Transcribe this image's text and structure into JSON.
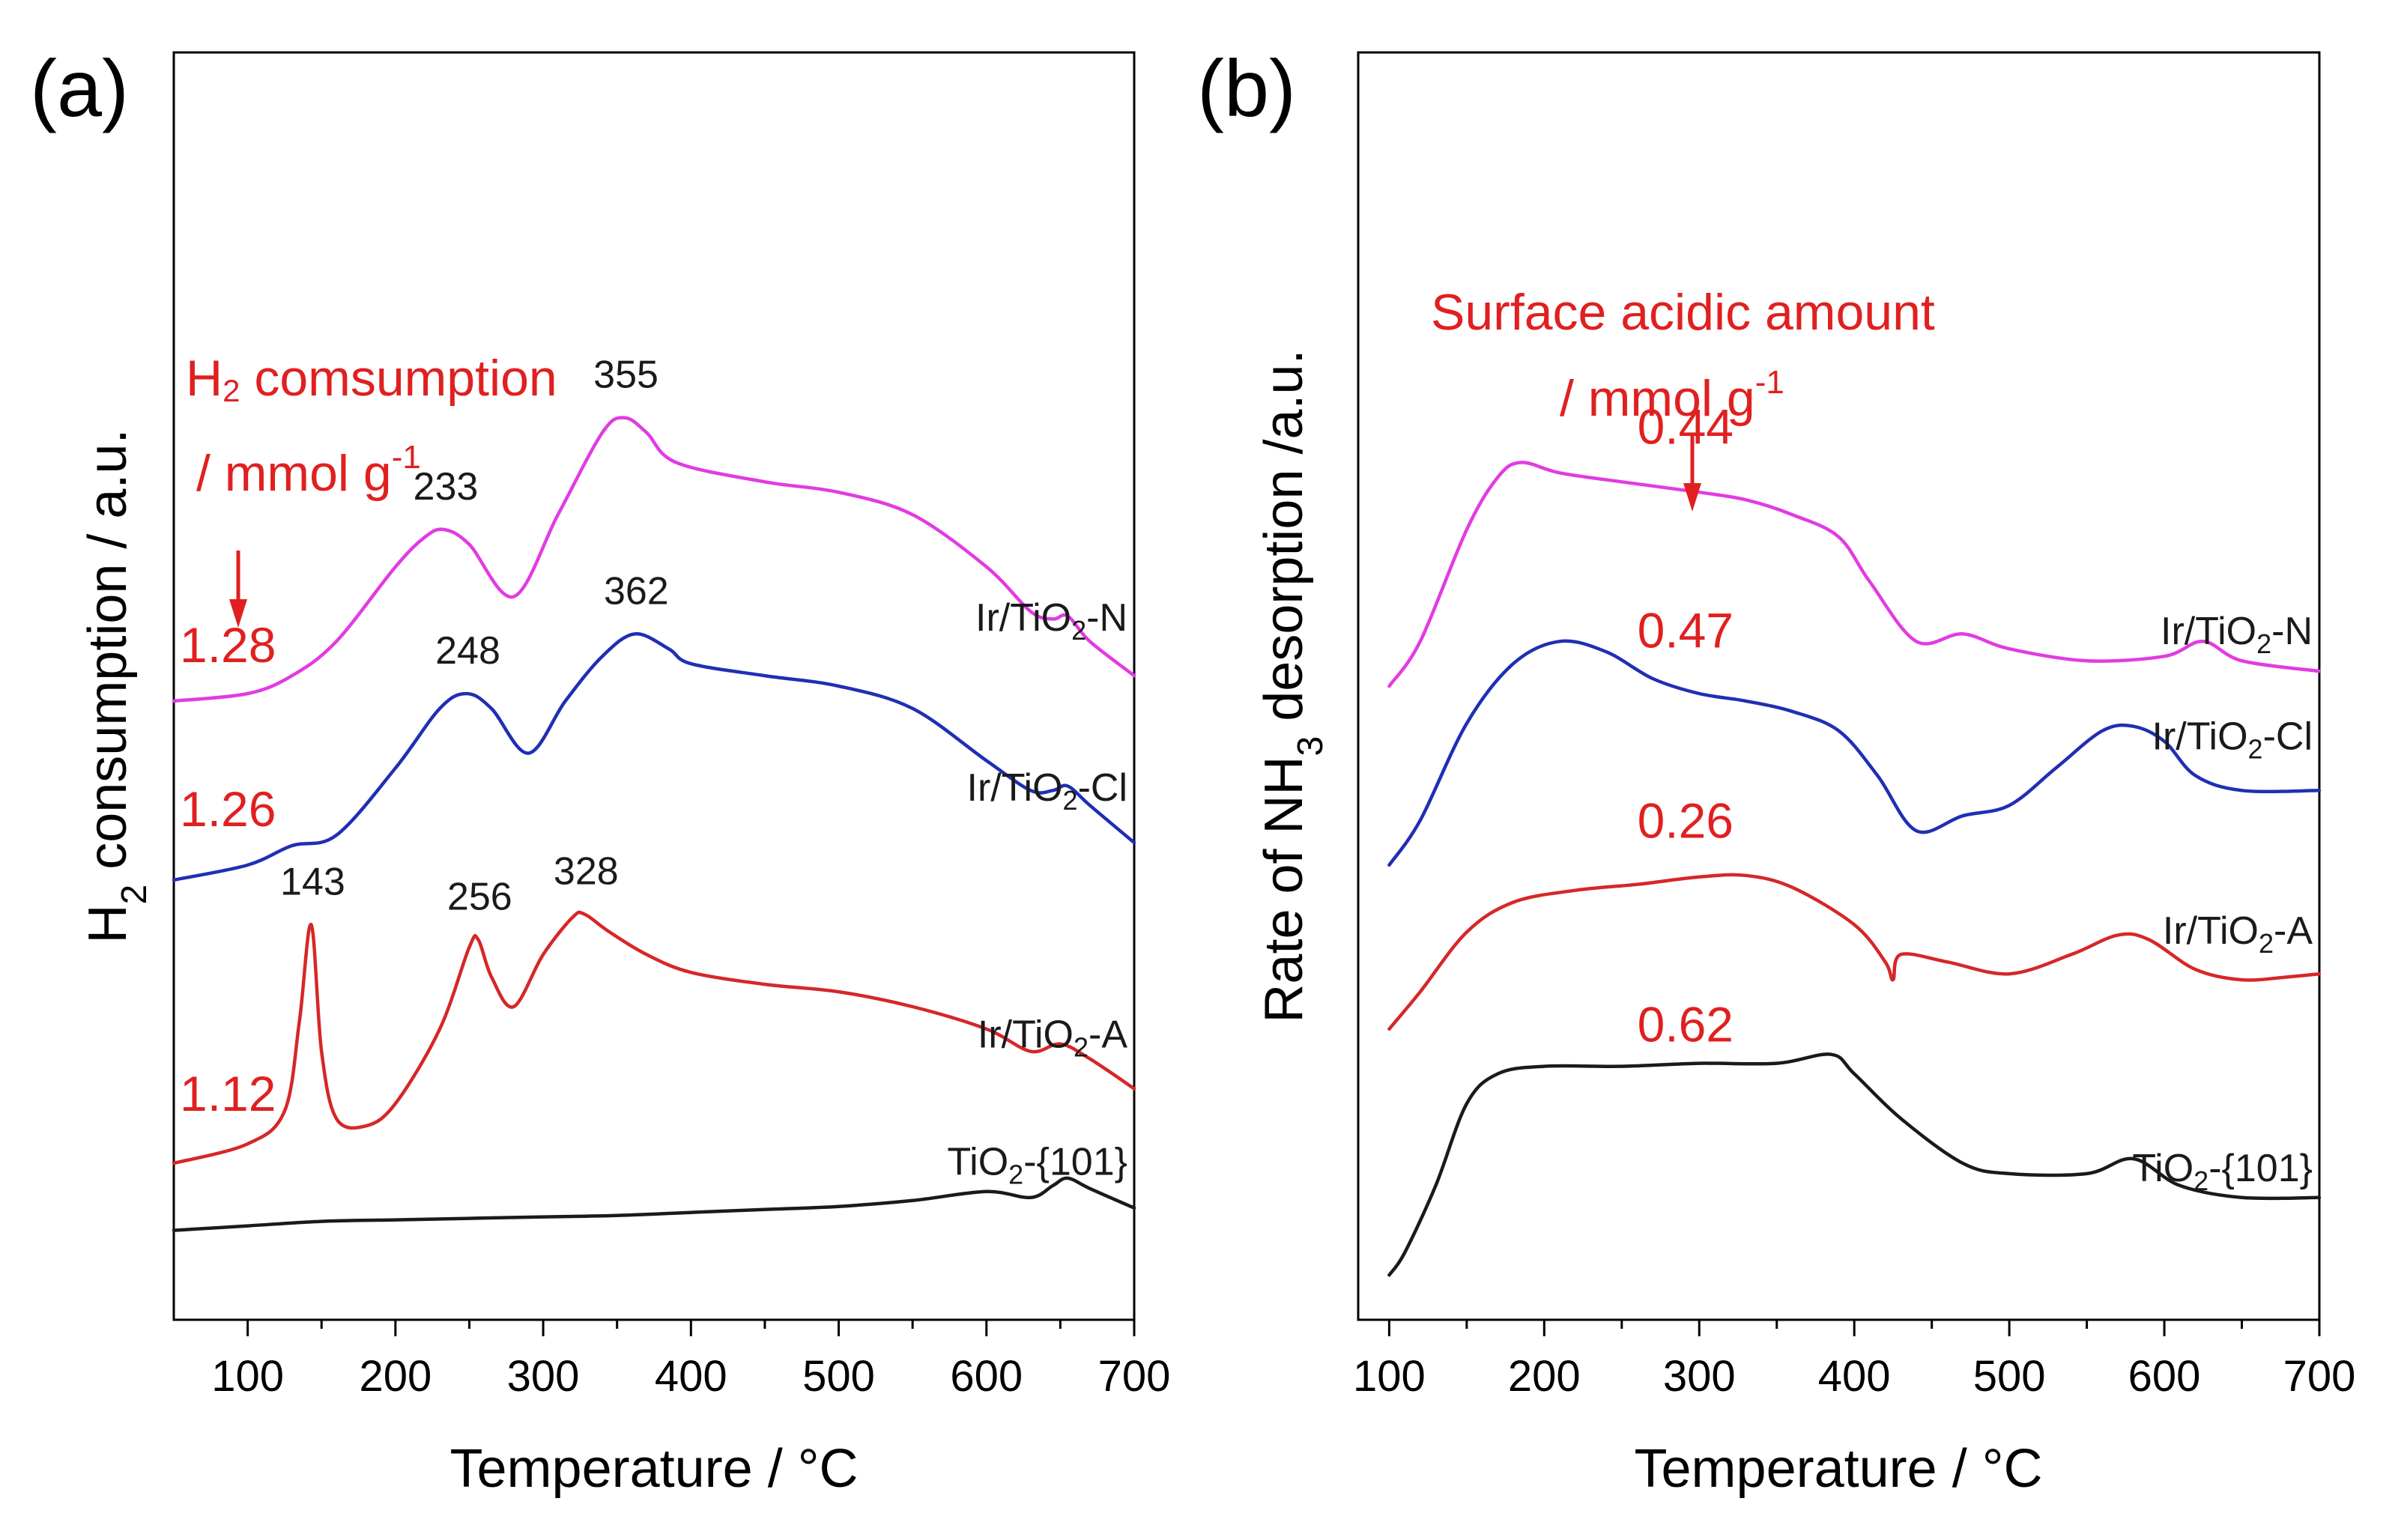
{
  "figure": {
    "colors": {
      "TiO2-{101}": "#1a1a1a",
      "Ir/TiO2-A": "#d62728",
      "Ir/TiO2-Cl": "#1f2fb4",
      "Ir/TiO2-N": "#e23be2",
      "annotation": "#e02020"
    }
  },
  "chart_data": [
    {
      "panel": "(a)",
      "type": "line",
      "xlabel": "Temperature / °C",
      "ylabel": "H2 consumption / a.u.",
      "xlim": [
        50,
        700
      ],
      "xticks": [
        100,
        200,
        300,
        400,
        500,
        600,
        700
      ],
      "ylim": [
        0,
        8.5
      ],
      "y_ticks_shown": false,
      "annotation": {
        "line1_sub": "H",
        "line1_subscript": "2",
        "line1_rest": " comsumption",
        "line2": "/ mmol g",
        "line2_sup": "-1"
      },
      "series": [
        {
          "name": "TiO2-{101}",
          "label_main": "TiO",
          "label_sub": "2",
          "label_rest": "-{101}",
          "value_label": "",
          "peak_labels": [],
          "x": [
            50,
            100,
            150,
            200,
            250,
            300,
            350,
            400,
            450,
            500,
            550,
            600,
            630,
            645,
            655,
            670,
            700
          ],
          "y": [
            0.6,
            0.63,
            0.66,
            0.67,
            0.68,
            0.69,
            0.7,
            0.72,
            0.74,
            0.76,
            0.8,
            0.86,
            0.82,
            0.9,
            0.95,
            0.88,
            0.75
          ]
        },
        {
          "name": "Ir/TiO2-A",
          "label_main": "Ir/TiO",
          "label_sub": "2",
          "label_rest": "-A",
          "value_label": "1.12",
          "peak_labels": [
            {
              "x": 143,
              "text": "143"
            },
            {
              "x": 256,
              "text": "256"
            },
            {
              "x": 328,
              "text": "328"
            }
          ],
          "x": [
            50,
            100,
            125,
            135,
            143,
            150,
            160,
            180,
            200,
            230,
            250,
            256,
            265,
            280,
            300,
            320,
            328,
            345,
            370,
            400,
            450,
            500,
            550,
            600,
            630,
            650,
            670,
            700
          ],
          "y": [
            1.05,
            1.18,
            1.4,
            2.0,
            2.65,
            1.8,
            1.35,
            1.3,
            1.45,
            1.95,
            2.5,
            2.55,
            2.3,
            2.1,
            2.45,
            2.7,
            2.72,
            2.6,
            2.45,
            2.33,
            2.25,
            2.2,
            2.1,
            1.95,
            1.8,
            1.85,
            1.75,
            1.55
          ]
        },
        {
          "name": "Ir/TiO2-Cl",
          "label_main": "Ir/TiO",
          "label_sub": "2",
          "label_rest": "-Cl",
          "value_label": "1.26",
          "peak_labels": [
            {
              "x": 248,
              "text": "248"
            },
            {
              "x": 362,
              "text": "362"
            }
          ],
          "x": [
            50,
            100,
            130,
            160,
            200,
            230,
            248,
            265,
            290,
            315,
            340,
            362,
            385,
            400,
            450,
            500,
            550,
            600,
            630,
            645,
            655,
            670,
            700
          ],
          "y": [
            2.95,
            3.05,
            3.18,
            3.25,
            3.7,
            4.1,
            4.2,
            4.1,
            3.8,
            4.15,
            4.45,
            4.6,
            4.5,
            4.4,
            4.32,
            4.25,
            4.1,
            3.75,
            3.55,
            3.55,
            3.58,
            3.45,
            3.2
          ]
        },
        {
          "name": "Ir/TiO2-N",
          "label_main": "Ir/TiO",
          "label_sub": "2",
          "label_rest": "-N",
          "value_label": "1.28",
          "peak_labels": [
            {
              "x": 233,
              "text": "233"
            },
            {
              "x": 355,
              "text": "355"
            }
          ],
          "x": [
            50,
            100,
            130,
            160,
            200,
            220,
            233,
            250,
            280,
            310,
            340,
            355,
            370,
            390,
            450,
            500,
            550,
            600,
            630,
            645,
            655,
            670,
            700
          ],
          "y": [
            4.15,
            4.2,
            4.32,
            4.55,
            5.05,
            5.25,
            5.3,
            5.2,
            4.85,
            5.4,
            5.95,
            6.05,
            5.95,
            5.75,
            5.62,
            5.55,
            5.4,
            5.05,
            4.75,
            4.7,
            4.72,
            4.55,
            4.32
          ]
        }
      ]
    },
    {
      "panel": "(b)",
      "type": "line",
      "xlabel": "Temperature / °C",
      "ylabel": "Rate of NH3 desorption /a.u.",
      "xlim": [
        80,
        700
      ],
      "xticks": [
        100,
        200,
        300,
        400,
        500,
        600,
        700
      ],
      "ylim": [
        0,
        8.5
      ],
      "y_ticks_shown": false,
      "annotation": {
        "line1": "Surface acidic amount",
        "line2": "/ mmol g",
        "line2_sup": "-1"
      },
      "series": [
        {
          "name": "TiO2-{101}",
          "label_main": "TiO",
          "label_sub": "2",
          "label_rest": "-{101}",
          "value_label": "0.62",
          "x": [
            100,
            110,
            130,
            150,
            170,
            200,
            250,
            300,
            350,
            385,
            400,
            430,
            470,
            500,
            550,
            580,
            610,
            650,
            700
          ],
          "y": [
            0.3,
            0.45,
            0.9,
            1.45,
            1.65,
            1.7,
            1.7,
            1.72,
            1.72,
            1.78,
            1.65,
            1.35,
            1.05,
            0.98,
            0.98,
            1.08,
            0.9,
            0.82,
            0.82
          ]
        },
        {
          "name": "Ir/TiO2-A",
          "label_main": "Ir/TiO",
          "label_sub": "2",
          "label_rest": "-A",
          "value_label": "0.26",
          "x": [
            100,
            120,
            150,
            180,
            220,
            260,
            300,
            330,
            360,
            400,
            420,
            425,
            430,
            460,
            500,
            540,
            570,
            590,
            620,
            650,
            680,
            700
          ],
          "y": [
            1.95,
            2.2,
            2.6,
            2.8,
            2.88,
            2.92,
            2.97,
            2.98,
            2.9,
            2.65,
            2.4,
            2.28,
            2.45,
            2.4,
            2.32,
            2.45,
            2.58,
            2.55,
            2.35,
            2.28,
            2.3,
            2.32
          ]
        },
        {
          "name": "Ir/TiO2-Cl",
          "label_main": "Ir/TiO",
          "label_sub": "2",
          "label_rest": "-Cl",
          "value_label": "0.47",
          "x": [
            100,
            120,
            150,
            180,
            210,
            240,
            270,
            300,
            330,
            360,
            390,
            415,
            440,
            470,
            500,
            530,
            560,
            580,
            600,
            620,
            650,
            700
          ],
          "y": [
            3.05,
            3.35,
            4.0,
            4.4,
            4.55,
            4.48,
            4.3,
            4.2,
            4.15,
            4.08,
            3.95,
            3.65,
            3.28,
            3.38,
            3.45,
            3.7,
            3.95,
            3.98,
            3.88,
            3.65,
            3.55,
            3.55
          ]
        },
        {
          "name": "Ir/TiO2-N",
          "label_main": "Ir/TiO",
          "label_sub": "2",
          "label_rest": "-N",
          "value_label": "0.44",
          "x": [
            100,
            120,
            150,
            170,
            185,
            210,
            250,
            300,
            330,
            360,
            390,
            410,
            440,
            470,
            500,
            550,
            600,
            625,
            650,
            700
          ],
          "y": [
            4.25,
            4.55,
            5.3,
            5.65,
            5.75,
            5.68,
            5.62,
            5.55,
            5.5,
            5.4,
            5.25,
            4.95,
            4.55,
            4.6,
            4.5,
            4.42,
            4.45,
            4.55,
            4.42,
            4.35
          ]
        }
      ]
    }
  ]
}
